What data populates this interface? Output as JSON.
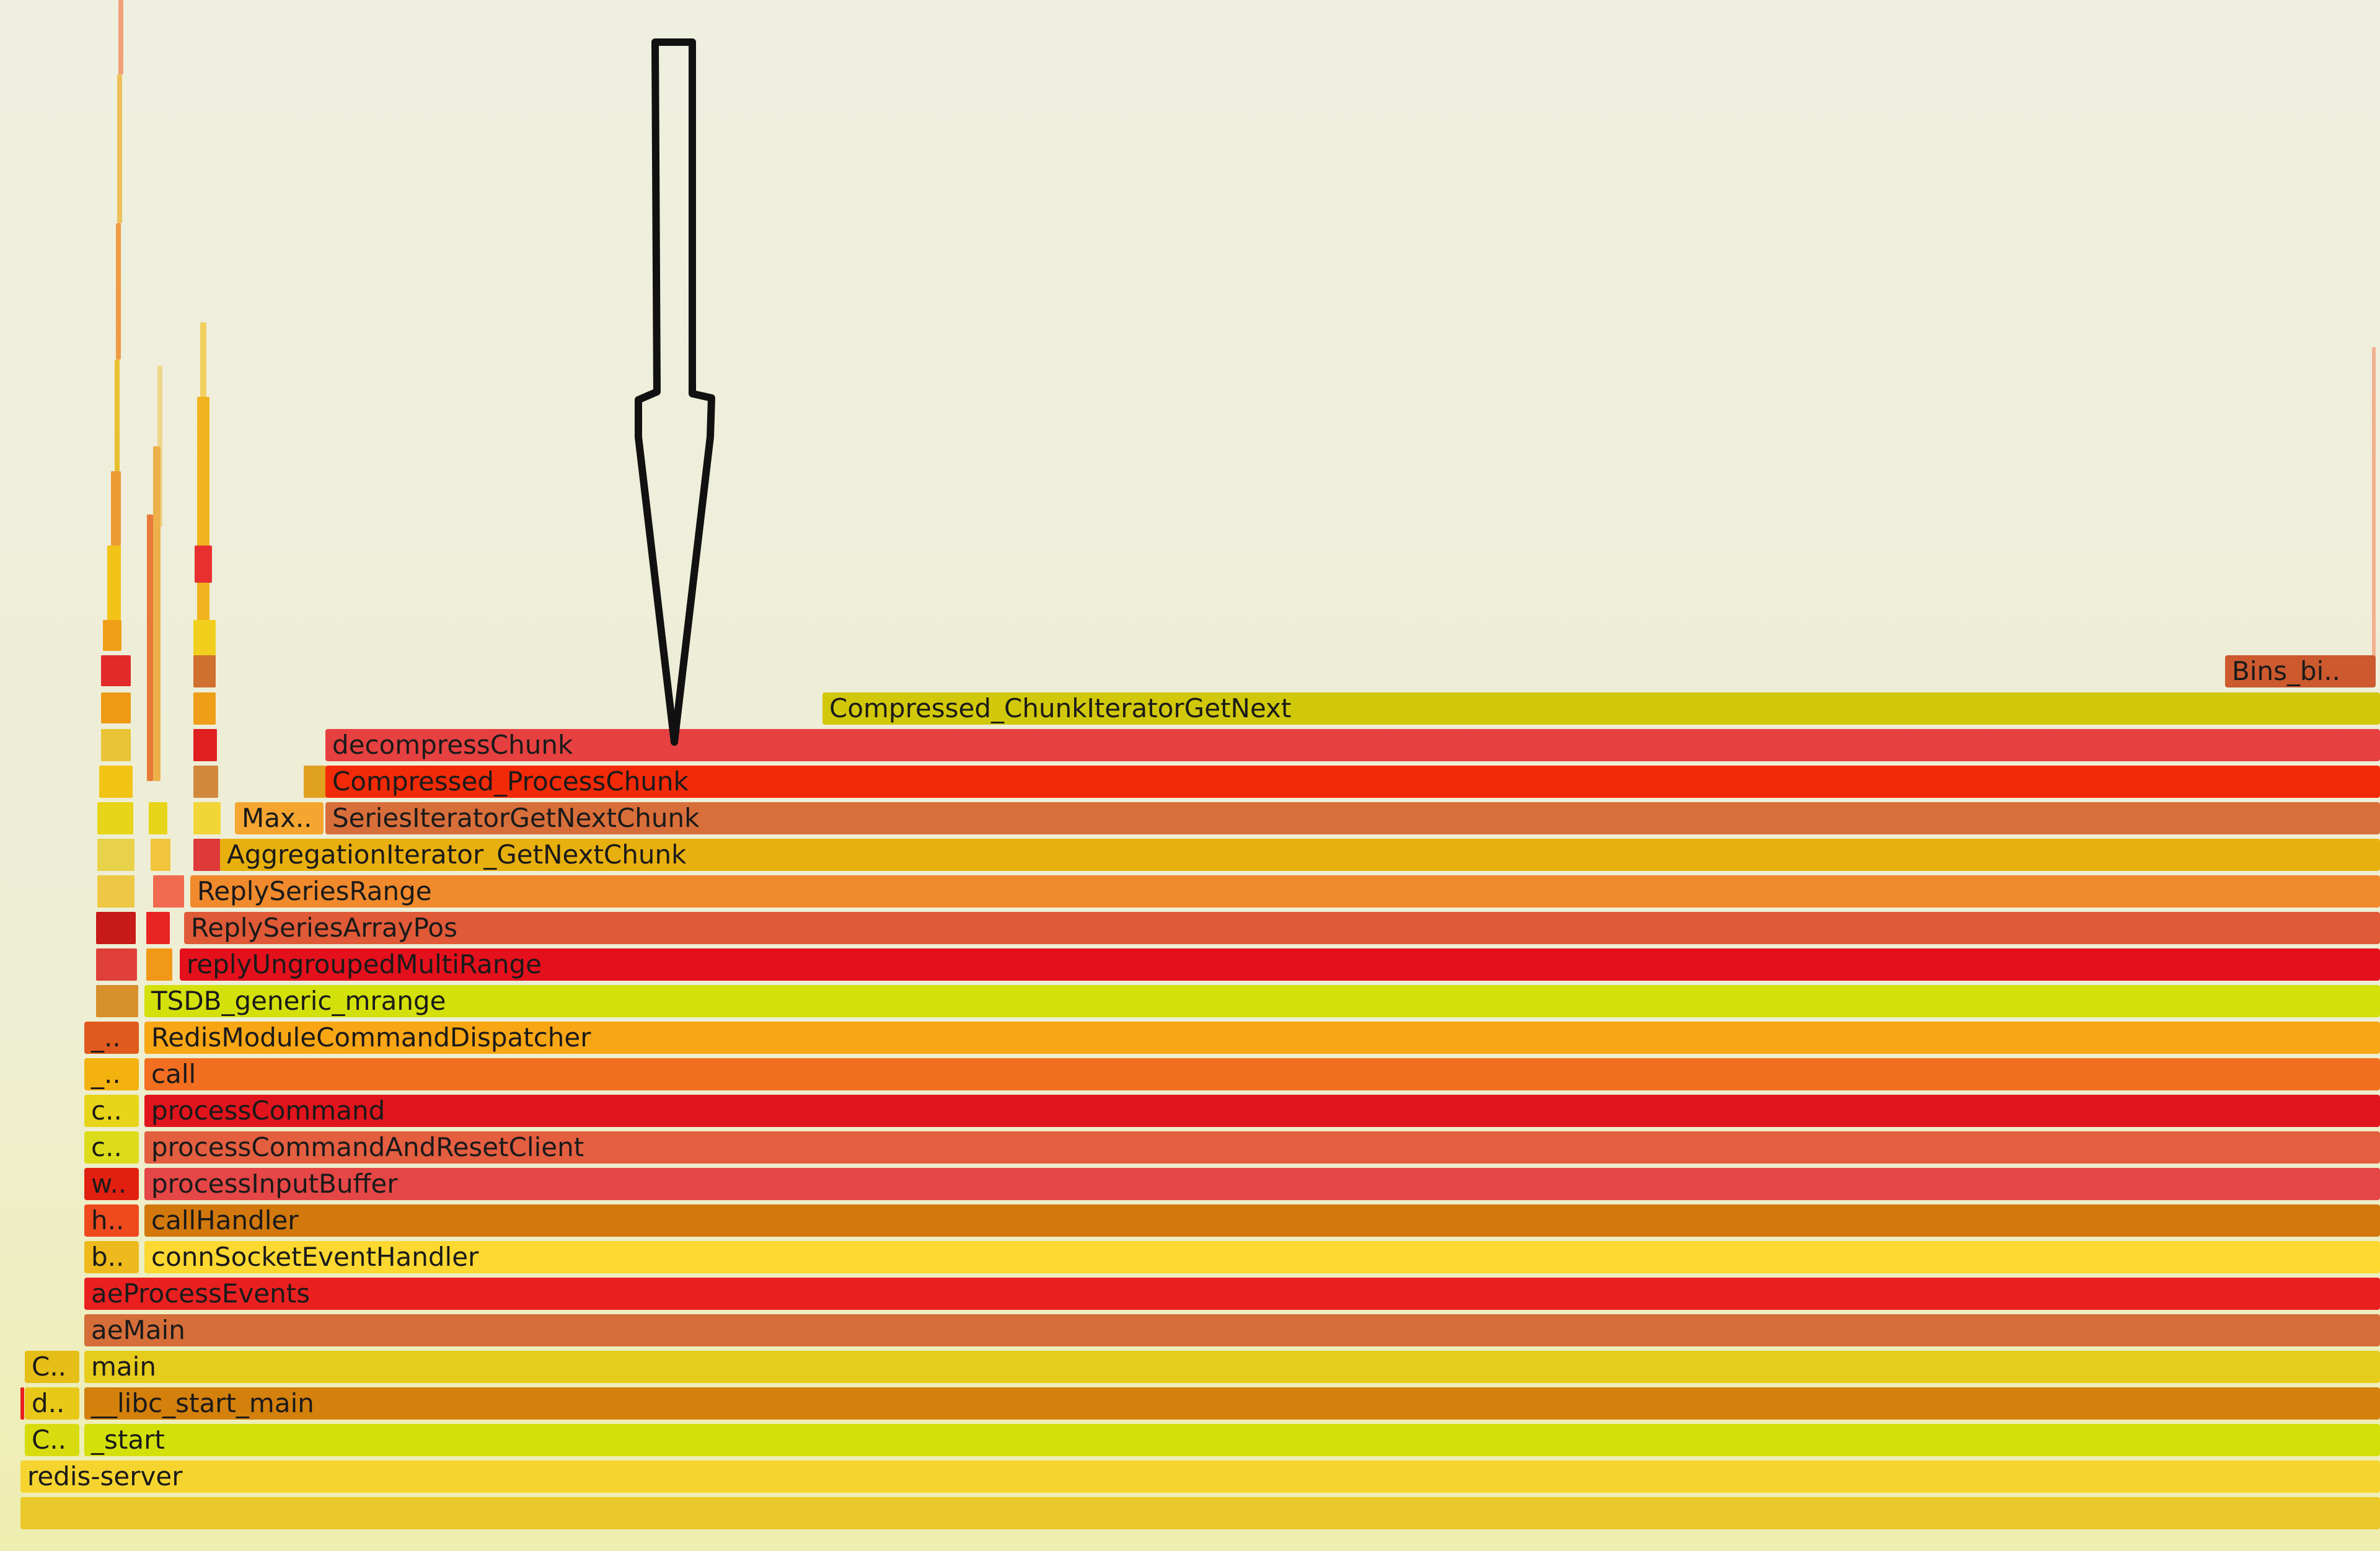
{
  "flamegraph": {
    "root": "redis-server",
    "frames": [
      {
        "label": "Bins_bi..",
        "color": "#cc5a2e"
      },
      {
        "label": "Compressed_ChunkIteratorGetNext",
        "color": "#d2c80a"
      },
      {
        "label": "decompressChunk",
        "color": "#e64040"
      },
      {
        "label": "Compressed_ProcessChunk",
        "color": "#f22a08"
      },
      {
        "label": "Max..",
        "color": "#f5a631"
      },
      {
        "label": "SeriesIteratorGetNextChunk",
        "color": "#d86e3a"
      },
      {
        "label": "AggregationIterator_GetNextChunk",
        "color": "#e8b00e"
      },
      {
        "label": "ReplySeriesRange",
        "color": "#f08a2c"
      },
      {
        "label": "ReplySeriesArrayPos",
        "color": "#e05a38"
      },
      {
        "label": "replyUngroupedMultiRange",
        "color": "#e4101c"
      },
      {
        "label": "TSDB_generic_mrange",
        "color": "#d4e00a"
      },
      {
        "label": "_..",
        "color": "#e05a1e"
      },
      {
        "label": "RedisModuleCommandDispatcher",
        "color": "#f8a614"
      },
      {
        "label": "_..",
        "color": "#f3b210"
      },
      {
        "label": "call",
        "color": "#f26e20"
      },
      {
        "label": "c..",
        "color": "#e8d418"
      },
      {
        "label": "processCommand",
        "color": "#e0141c"
      },
      {
        "label": "c..",
        "color": "#dcdc1a"
      },
      {
        "label": "processCommandAndResetClient",
        "color": "#e45e40"
      },
      {
        "label": "w..",
        "color": "#e22010"
      },
      {
        "label": "processInputBuffer",
        "color": "#e54646"
      },
      {
        "label": "h..",
        "color": "#ee4a1e"
      },
      {
        "label": "callHandler",
        "color": "#d2780c"
      },
      {
        "label": "b..",
        "color": "#eeb91c"
      },
      {
        "label": "connSocketEventHandler",
        "color": "#fcd830"
      },
      {
        "label": "aeProcessEvents",
        "color": "#ea2020"
      },
      {
        "label": "aeMain",
        "color": "#d66e3a"
      },
      {
        "label": "C..",
        "color": "#e6be18"
      },
      {
        "label": "main",
        "color": "#e6cc1c"
      },
      {
        "label": "d..",
        "color": "#e8c818"
      },
      {
        "label": "__libc_start_main",
        "color": "#d4800c"
      },
      {
        "label": "C..",
        "color": "#d8dc0e"
      },
      {
        "label": "_start",
        "color": "#d4e00a"
      },
      {
        "label": "redis-server",
        "color": "#f5d430"
      },
      {
        "label": "",
        "color": "#ebc92a"
      }
    ],
    "annotation": {
      "type": "arrow-pointing-down",
      "target": "decompressChunk",
      "stroke": "#111111"
    }
  }
}
